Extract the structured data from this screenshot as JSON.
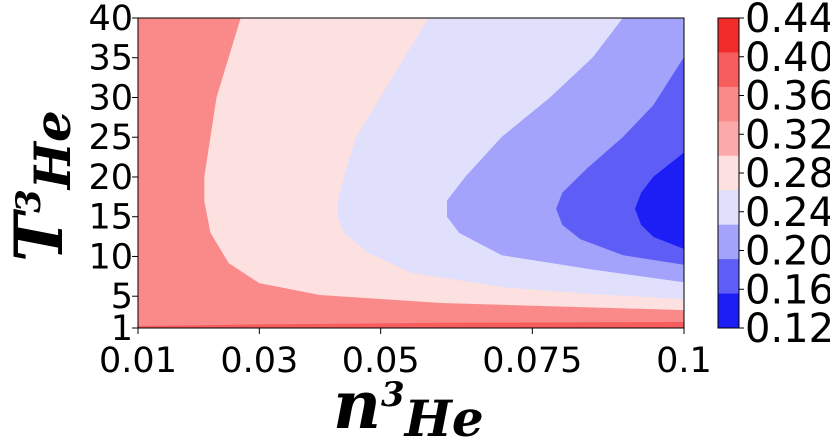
{
  "chart_data": {
    "type": "contour",
    "xlabel": {
      "base": "n",
      "sup": "3",
      "sub": "He"
    },
    "ylabel": {
      "base": "T",
      "sup": "3",
      "sub": "He"
    },
    "x_ticks": [
      "0.01",
      "0.03",
      "0.05",
      "0.075",
      "0.1"
    ],
    "x_tick_values": [
      0.01,
      0.03,
      0.05,
      0.075,
      0.1
    ],
    "y_ticks": [
      "1",
      "5",
      "10",
      "15",
      "20",
      "25",
      "30",
      "35",
      "40"
    ],
    "y_tick_values": [
      1,
      5,
      10,
      15,
      20,
      25,
      30,
      35,
      40
    ],
    "xlim": [
      0.01,
      0.1
    ],
    "ylim": [
      1,
      40
    ],
    "colorbar": {
      "labels": [
        "0.44",
        "0.40",
        "0.36",
        "0.32",
        "0.28",
        "0.24",
        "0.20",
        "0.16",
        "0.12"
      ],
      "levels": [
        0.44,
        0.4,
        0.36,
        0.32,
        0.28,
        0.24,
        0.2,
        0.16,
        0.12
      ],
      "colors": [
        "#f22b2b",
        "#f75d5d",
        "#fa8a8a",
        "#fca9a9",
        "#fde0e0",
        "#e0e0fd",
        "#a3a3fb",
        "#5e5ef7",
        "#1d1df5"
      ],
      "colormap": "bwr"
    },
    "regions": [
      {
        "range": [
          0.36,
          0.4
        ],
        "color": "#f75d5d",
        "boundary": [
          [
            0.01,
            1.0
          ],
          [
            0.1,
            1.0
          ],
          [
            0.1,
            1.8
          ],
          [
            0.06,
            1.7
          ],
          [
            0.03,
            1.5
          ],
          [
            0.01,
            1.3
          ]
        ]
      },
      {
        "range": [
          0.32,
          0.36
        ],
        "color": "#fa8a8a",
        "boundary": [
          [
            0.01,
            1.3
          ],
          [
            0.03,
            1.5
          ],
          [
            0.06,
            1.7
          ],
          [
            0.1,
            1.8
          ],
          [
            0.1,
            40
          ],
          [
            0.01,
            40
          ]
        ]
      },
      {
        "range": [
          0.28,
          0.32
        ],
        "color": "#fde0e0",
        "boundary": [
          [
            0.1,
            3.3
          ],
          [
            0.06,
            4.2
          ],
          [
            0.04,
            5.2
          ],
          [
            0.03,
            6.7
          ],
          [
            0.025,
            9.2
          ],
          [
            0.022,
            13
          ],
          [
            0.021,
            17
          ],
          [
            0.021,
            20
          ],
          [
            0.022,
            25
          ],
          [
            0.023,
            30
          ],
          [
            0.025,
            35
          ],
          [
            0.027,
            40
          ],
          [
            0.1,
            40
          ]
        ]
      },
      {
        "range": [
          0.24,
          0.28
        ],
        "color": "#e0e0fd",
        "boundary": [
          [
            0.1,
            4.7
          ],
          [
            0.085,
            5.3
          ],
          [
            0.07,
            6.2
          ],
          [
            0.055,
            8.0
          ],
          [
            0.048,
            10.5
          ],
          [
            0.044,
            13
          ],
          [
            0.043,
            15
          ],
          [
            0.043,
            17
          ],
          [
            0.044,
            20
          ],
          [
            0.046,
            25
          ],
          [
            0.05,
            30
          ],
          [
            0.054,
            35
          ],
          [
            0.058,
            40
          ],
          [
            0.1,
            40
          ]
        ]
      },
      {
        "range": [
          0.2,
          0.24
        ],
        "color": "#a3a3fb",
        "boundary": [
          [
            0.1,
            6.8
          ],
          [
            0.085,
            8.4
          ],
          [
            0.07,
            10.2
          ],
          [
            0.063,
            13
          ],
          [
            0.061,
            15
          ],
          [
            0.061,
            17
          ],
          [
            0.064,
            20
          ],
          [
            0.07,
            25
          ],
          [
            0.078,
            30
          ],
          [
            0.085,
            35
          ],
          [
            0.09,
            40
          ],
          [
            0.1,
            40
          ]
        ]
      },
      {
        "range": [
          0.16,
          0.2
        ],
        "color": "#5e5ef7",
        "boundary": [
          [
            0.1,
            9.0
          ],
          [
            0.09,
            10.2
          ],
          [
            0.083,
            12.2
          ],
          [
            0.08,
            14
          ],
          [
            0.079,
            16
          ],
          [
            0.08,
            18
          ],
          [
            0.084,
            21
          ],
          [
            0.09,
            25
          ],
          [
            0.095,
            29
          ],
          [
            0.1,
            35
          ]
        ]
      },
      {
        "range": [
          0.12,
          0.16
        ],
        "color": "#1d1df5",
        "boundary": [
          [
            0.1,
            11
          ],
          [
            0.095,
            12.5
          ],
          [
            0.093,
            14
          ],
          [
            0.092,
            16
          ],
          [
            0.093,
            18
          ],
          [
            0.095,
            20
          ],
          [
            0.1,
            23
          ]
        ]
      }
    ]
  }
}
